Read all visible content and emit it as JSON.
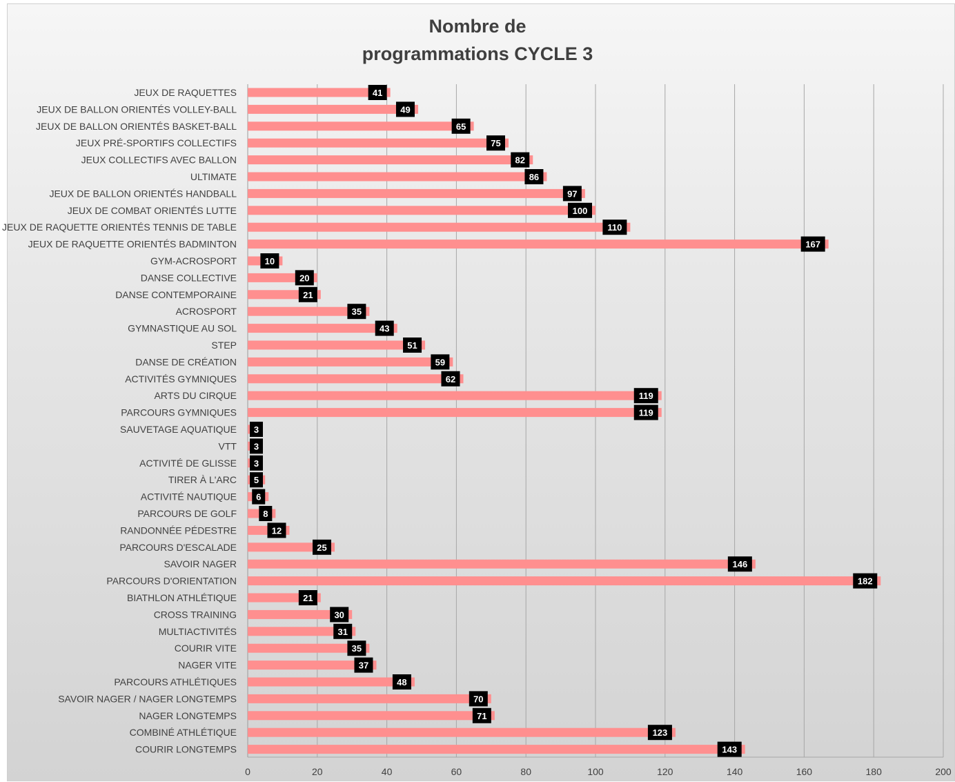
{
  "chart_data": {
    "type": "bar",
    "orientation": "horizontal",
    "title_line1": "Nombre de",
    "title_line2": "programmations CYCLE 3",
    "xlim": [
      0,
      200
    ],
    "xticks": [
      "0",
      "20",
      "40",
      "60",
      "80",
      "100",
      "120",
      "140",
      "160",
      "180",
      "200"
    ],
    "grid": true,
    "colors": {
      "bar": "#ff8f8f",
      "label_bg": "#000000",
      "label_text": "#ffffff"
    },
    "categories": [
      "JEUX DE RAQUETTES",
      "JEUX DE BALLON ORIENTÉS VOLLEY-BALL",
      "JEUX DE BALLON ORIENTÉS BASKET-BALL",
      "JEUX PRÉ-SPORTIFS COLLECTIFS",
      "JEUX COLLECTIFS AVEC BALLON",
      "ULTIMATE",
      "JEUX DE BALLON ORIENTÉS HANDBALL",
      "JEUX DE COMBAT ORIENTÉS LUTTE",
      "JEUX DE RAQUETTE ORIENTÉS TENNIS DE TABLE",
      "JEUX DE RAQUETTE ORIENTÉS BADMINTON",
      "GYM-ACROSPORT",
      "DANSE COLLECTIVE",
      "DANSE CONTEMPORAINE",
      "ACROSPORT",
      "GYMNASTIQUE AU SOL",
      "STEP",
      "DANSE DE CRÉATION",
      "ACTIVITÉS GYMNIQUES",
      "ARTS DU CIRQUE",
      "PARCOURS GYMNIQUES",
      "SAUVETAGE AQUATIQUE",
      "VTT",
      "ACTIVITÉ DE GLISSE",
      "TIRER À L'ARC",
      "ACTIVITÉ NAUTIQUE",
      "PARCOURS DE GOLF",
      "RANDONNÉE PÉDESTRE",
      "PARCOURS D'ESCALADE",
      "SAVOIR NAGER",
      "PARCOURS D'ORIENTATION",
      "BIATHLON ATHLÉTIQUE",
      "CROSS TRAINING",
      "MULTIACTIVITÉS",
      "COURIR VITE",
      "NAGER VITE",
      "PARCOURS ATHLÉTIQUES",
      "SAVOIR NAGER / NAGER LONGTEMPS",
      "NAGER LONGTEMPS",
      "COMBINÉ ATHLÉTIQUE",
      "COURIR LONGTEMPS"
    ],
    "values": [
      41,
      49,
      65,
      75,
      82,
      86,
      97,
      100,
      110,
      167,
      10,
      20,
      21,
      35,
      43,
      51,
      59,
      62,
      119,
      119,
      3,
      3,
      3,
      5,
      6,
      8,
      12,
      25,
      146,
      182,
      21,
      30,
      31,
      35,
      37,
      48,
      70,
      71,
      123,
      143
    ],
    "data_labels": [
      "41",
      "49",
      "65",
      "75",
      "82",
      "86",
      "97",
      "100",
      "110",
      "167",
      "10",
      "20",
      "21",
      "35",
      "43",
      "51",
      "59",
      "62",
      "119",
      "119",
      "3",
      "3",
      "3",
      "5",
      "6",
      "8",
      "12",
      "25",
      "146",
      "182",
      "21",
      "30",
      "31",
      "35",
      "37",
      "48",
      "70",
      "71",
      "123",
      "143"
    ]
  }
}
